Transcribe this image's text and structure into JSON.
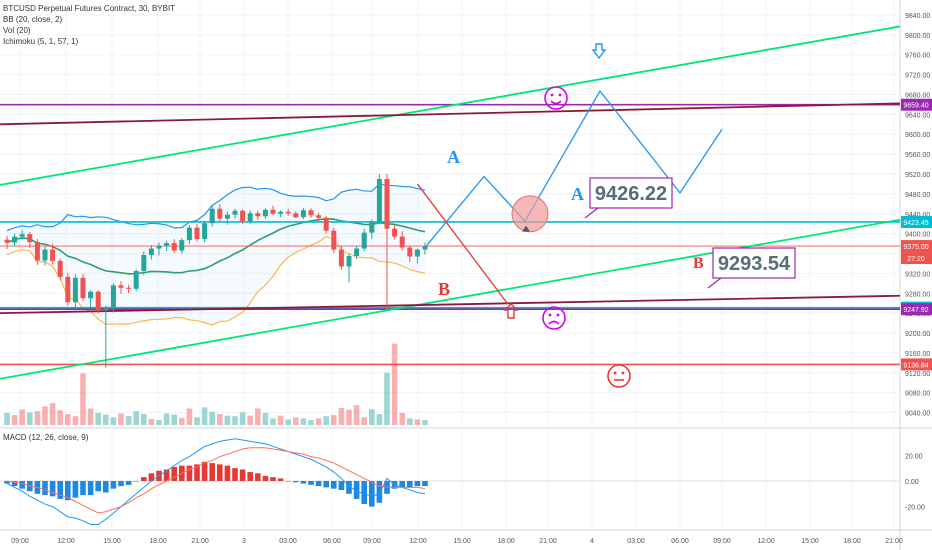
{
  "header": {
    "title": "BTCUSD Perpetual Futures Contract, 30, BYBIT",
    "indicators": [
      "BB (20, close, 2)",
      "Vol (20)",
      "Ichimoku (5, 1, 57, 1)"
    ]
  },
  "macd": {
    "label": "MACD (12, 26, close, 9)",
    "ticks": [
      "20.00",
      "0.00",
      "-20.00"
    ]
  },
  "chart_data": {
    "type": "candlestick",
    "title": "BTCUSD Perpetual Futures Contract, 30, BYBIT",
    "y_ticks": [
      9840,
      9800,
      9760,
      9720,
      9680,
      9640,
      9600,
      9560,
      9520,
      9480,
      9440,
      9400,
      9360,
      9320,
      9280,
      9240,
      9200,
      9160,
      9120,
      9080,
      9040
    ],
    "ylim": [
      9025,
      9850
    ],
    "x_ticks": [
      "09:00",
      "12:00",
      "15:00",
      "18:00",
      "21:00",
      "3",
      "03:00",
      "06:00",
      "09:00",
      "12:00",
      "15:00",
      "18:00",
      "21:00",
      "4",
      "03:00",
      "06:00",
      "09:00",
      "12:00",
      "15:00",
      "18:00",
      "21:00"
    ],
    "candles": [
      [
        9388,
        9396,
        9369,
        9382
      ],
      [
        9382,
        9400,
        9374,
        9394
      ],
      [
        9394,
        9407,
        9388,
        9399
      ],
      [
        9399,
        9403,
        9371,
        9383
      ],
      [
        9383,
        9389,
        9337,
        9346
      ],
      [
        9346,
        9374,
        9336,
        9368
      ],
      [
        9368,
        9380,
        9338,
        9345
      ],
      [
        9345,
        9350,
        9306,
        9313
      ],
      [
        9313,
        9320,
        9255,
        9262
      ],
      [
        9262,
        9318,
        9250,
        9311
      ],
      [
        9311,
        9318,
        9264,
        9270
      ],
      [
        9270,
        9286,
        9250,
        9283
      ],
      [
        9283,
        9286,
        9240,
        9246
      ],
      [
        9246,
        9255,
        9130,
        9249
      ],
      [
        9249,
        9300,
        9241,
        9296
      ],
      [
        9296,
        9304,
        9279,
        9291
      ],
      [
        9291,
        9297,
        9280,
        9289
      ],
      [
        9289,
        9328,
        9284,
        9325
      ],
      [
        9325,
        9364,
        9316,
        9357
      ],
      [
        9357,
        9377,
        9348,
        9370
      ],
      [
        9370,
        9382,
        9356,
        9376
      ],
      [
        9376,
        9386,
        9365,
        9381
      ],
      [
        9381,
        9389,
        9361,
        9366
      ],
      [
        9366,
        9391,
        9360,
        9387
      ],
      [
        9387,
        9417,
        9379,
        9412
      ],
      [
        9412,
        9420,
        9384,
        9389
      ],
      [
        9389,
        9425,
        9383,
        9421
      ],
      [
        9421,
        9456,
        9414,
        9450
      ],
      [
        9450,
        9459,
        9424,
        9430
      ],
      [
        9430,
        9444,
        9418,
        9438
      ],
      [
        9438,
        9450,
        9430,
        9446
      ],
      [
        9446,
        9449,
        9419,
        9425
      ],
      [
        9425,
        9447,
        9419,
        9441
      ],
      [
        9441,
        9446,
        9428,
        9435
      ],
      [
        9435,
        9451,
        9430,
        9448
      ],
      [
        9448,
        9456,
        9437,
        9440
      ],
      [
        9440,
        9447,
        9433,
        9444
      ],
      [
        9444,
        9450,
        9436,
        9441
      ],
      [
        9441,
        9445,
        9431,
        9433
      ],
      [
        9433,
        9452,
        9429,
        9447
      ],
      [
        9447,
        9451,
        9432,
        9437
      ],
      [
        9437,
        9442,
        9425,
        9432
      ],
      [
        9432,
        9435,
        9400,
        9406
      ],
      [
        9406,
        9412,
        9360,
        9368
      ],
      [
        9368,
        9376,
        9327,
        9334
      ],
      [
        9334,
        9360,
        9302,
        9355
      ],
      [
        9355,
        9375,
        9349,
        9370
      ],
      [
        9370,
        9410,
        9364,
        9402
      ],
      [
        9402,
        9429,
        9390,
        9424
      ],
      [
        9424,
        9520,
        9418,
        9510
      ],
      [
        9510,
        9520,
        9247,
        9410
      ],
      [
        9410,
        9418,
        9388,
        9394
      ],
      [
        9394,
        9405,
        9366,
        9372
      ],
      [
        9372,
        9376,
        9343,
        9354
      ],
      [
        9354,
        9370,
        9340,
        9368
      ],
      [
        9368,
        9382,
        9358,
        9374
      ]
    ],
    "volume": [
      [
        22,
        "up"
      ],
      [
        18,
        "down"
      ],
      [
        28,
        "down"
      ],
      [
        23,
        "up"
      ],
      [
        25,
        "down"
      ],
      [
        34,
        "down"
      ],
      [
        40,
        "down"
      ],
      [
        27,
        "down"
      ],
      [
        20,
        "down"
      ],
      [
        16,
        "down"
      ],
      [
        94,
        "down"
      ],
      [
        30,
        "down"
      ],
      [
        22,
        "up"
      ],
      [
        19,
        "up"
      ],
      [
        14,
        "up"
      ],
      [
        21,
        "down"
      ],
      [
        16,
        "up"
      ],
      [
        25,
        "up"
      ],
      [
        20,
        "up"
      ],
      [
        11,
        "down"
      ],
      [
        9,
        "up"
      ],
      [
        21,
        "up"
      ],
      [
        19,
        "up"
      ],
      [
        13,
        "down"
      ],
      [
        30,
        "down"
      ],
      [
        14,
        "up"
      ],
      [
        32,
        "up"
      ],
      [
        24,
        "up"
      ],
      [
        20,
        "down"
      ],
      [
        17,
        "up"
      ],
      [
        16,
        "up"
      ],
      [
        23,
        "up"
      ],
      [
        17,
        "down"
      ],
      [
        30,
        "down"
      ],
      [
        22,
        "up"
      ],
      [
        12,
        "up"
      ],
      [
        17,
        "down"
      ],
      [
        10,
        "up"
      ],
      [
        14,
        "down"
      ],
      [
        12,
        "up"
      ],
      [
        9,
        "up"
      ],
      [
        12,
        "down"
      ],
      [
        16,
        "up"
      ],
      [
        18,
        "down"
      ],
      [
        31,
        "down"
      ],
      [
        28,
        "down"
      ],
      [
        36,
        "down"
      ],
      [
        14,
        "down"
      ],
      [
        29,
        "up"
      ],
      [
        20,
        "up"
      ],
      [
        95,
        "up"
      ],
      [
        148,
        "down"
      ],
      [
        22,
        "down"
      ],
      [
        12,
        "up"
      ],
      [
        10,
        "down"
      ],
      [
        9,
        "up"
      ]
    ],
    "macd_hist": [
      -2,
      -4,
      -6,
      -8,
      -10,
      -11,
      -12,
      -14,
      -15,
      -13,
      -11,
      -11,
      -8,
      -9,
      -6,
      -4,
      -3,
      0,
      3,
      6,
      8,
      9,
      11,
      12,
      12,
      13,
      15,
      14,
      13,
      12,
      10,
      9,
      7,
      6,
      4,
      3,
      2,
      0,
      -1,
      -2,
      -3,
      -4,
      -5,
      -6,
      -7,
      -10,
      -14,
      -18,
      -20,
      -17,
      -10,
      -6,
      -5,
      -5,
      -4,
      -4
    ],
    "macd_line": [
      -2,
      -5,
      -8,
      -12,
      -15,
      -18,
      -20,
      -24,
      -28,
      -29,
      -31,
      -34,
      -34,
      -30,
      -25,
      -20,
      -15,
      -10,
      -5,
      0,
      4,
      8,
      12,
      16,
      19,
      23,
      27,
      29,
      31,
      32,
      33,
      32,
      31,
      30,
      29,
      27,
      25,
      23,
      21,
      19,
      17,
      14,
      11,
      7,
      2,
      -4,
      -8,
      -10,
      -12,
      -10,
      2,
      -3,
      -5,
      -7,
      -9,
      -10
    ],
    "signal_line": [
      0,
      -1,
      -2,
      -4,
      -5,
      -7,
      -9,
      -11,
      -13,
      -16,
      -19,
      -22,
      -25,
      -24,
      -22,
      -20,
      -17,
      -13,
      -10,
      -6,
      -3,
      0,
      3,
      6,
      9,
      11,
      14,
      16,
      19,
      21,
      23,
      25,
      26,
      26,
      26,
      25,
      24,
      23,
      22,
      21,
      19,
      18,
      16,
      14,
      11,
      8,
      5,
      2,
      -1,
      -4,
      -5,
      -5,
      -5,
      -5,
      -5,
      -6
    ],
    "axis_price_labels": [
      {
        "price": 9659.4,
        "label": "9659.40",
        "color": "#9c27b0"
      },
      {
        "price": 9423.45,
        "label": "9423.45",
        "color": "#00bcd4"
      },
      {
        "price": 9375.0,
        "label": "9375.00",
        "color": "#ef5350"
      },
      {
        "price": 9251.09,
        "label": "9251.09",
        "color": "#00bcd4"
      },
      {
        "price": 9247.92,
        "label": "9247.92",
        "color": "#9c27b0"
      },
      {
        "price": 9136.84,
        "label": "9136.84",
        "color": "#ef5350"
      }
    ],
    "countdown": "27:20",
    "annotations": [
      {
        "text": "A",
        "color": "#2196f3"
      },
      {
        "text": "B",
        "color": "#e53935"
      },
      {
        "text": "A",
        "color": "#2196f3"
      },
      {
        "text": "B",
        "color": "#e53935"
      },
      {
        "text": "9426.22",
        "color": "#9c27b0"
      },
      {
        "text": "9293.54",
        "color": "#9c27b0"
      }
    ]
  },
  "colors": {
    "bull": "#26a69a",
    "bear": "#ef5350",
    "magenta": "#d500f9",
    "cyan": "#00e5ff",
    "green_line": "#00e676",
    "maroon_line": "#8b1a3a",
    "red_line": "#e53935",
    "blue_path": "#2196f3"
  }
}
